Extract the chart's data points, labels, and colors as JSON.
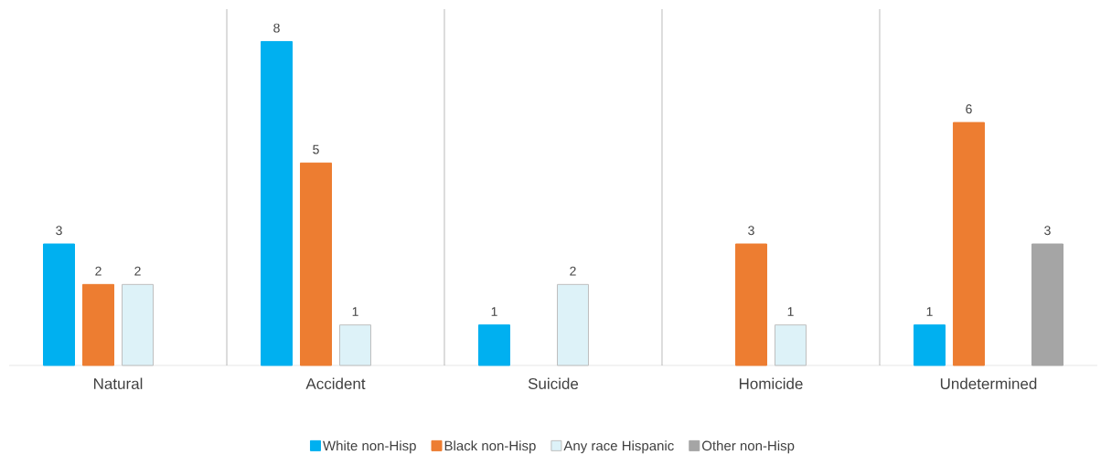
{
  "chart_data": {
    "type": "bar",
    "categories": [
      "Natural",
      "Accident",
      "Suicide",
      "Homicide",
      "Undetermined"
    ],
    "series": [
      {
        "name": "White non-Hisp",
        "color": "#00b0f0",
        "values": [
          3,
          8,
          1,
          null,
          1
        ]
      },
      {
        "name": "Black non-Hisp",
        "color": "#ed7d31",
        "values": [
          2,
          5,
          null,
          3,
          6
        ]
      },
      {
        "name": "Any race Hispanic",
        "color": "#ddf2f8",
        "values": [
          2,
          1,
          2,
          1,
          null
        ]
      },
      {
        "name": "Other non-Hisp",
        "color": "#a5a5a5",
        "values": [
          null,
          null,
          null,
          null,
          3
        ]
      }
    ],
    "data_labels": true,
    "grid": "x",
    "legend": "bottom"
  }
}
